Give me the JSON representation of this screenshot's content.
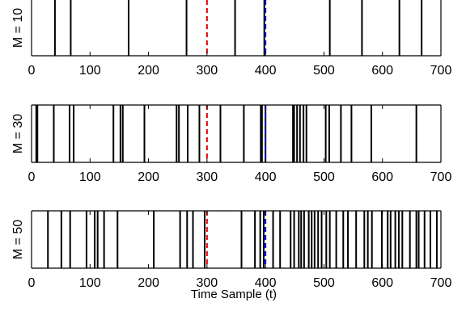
{
  "colors": {
    "event": "#000000",
    "marker_1": "#e00000",
    "marker_2": "#0000e0",
    "axes": "#000000"
  },
  "chart_data": {
    "type": "event-raster",
    "xlabel": "Time Sample (t)",
    "xlim": [
      0,
      700
    ],
    "x_ticks": [
      0,
      100,
      200,
      300,
      400,
      500,
      600,
      700
    ],
    "x_tick_labels": [
      "0",
      "100",
      "200",
      "300",
      "400",
      "500",
      "600",
      "700"
    ],
    "markers": [
      {
        "x": 300,
        "color": "red",
        "style": "dashed"
      },
      {
        "x": 400,
        "color": "blue",
        "style": "dashed"
      }
    ],
    "panels": [
      {
        "ylabel": "M = 10",
        "events": [
          40,
          67,
          166,
          265,
          348,
          398,
          510,
          565,
          629,
          667
        ]
      },
      {
        "ylabel": "M = 30",
        "events": [
          8,
          10,
          38,
          65,
          72,
          140,
          152,
          156,
          193,
          248,
          252,
          267,
          287,
          323,
          363,
          392,
          394,
          400,
          447,
          449,
          454,
          459,
          465,
          470,
          503,
          509,
          529,
          547,
          581,
          658
        ]
      },
      {
        "ylabel": "M = 50",
        "events": [
          28,
          51,
          66,
          94,
          108,
          113,
          124,
          147,
          209,
          254,
          266,
          276,
          296,
          359,
          382,
          391,
          397,
          413,
          425,
          443,
          449,
          457,
          461,
          466,
          474,
          479,
          484,
          490,
          496,
          504,
          510,
          521,
          533,
          541,
          555,
          569,
          575,
          582,
          599,
          609,
          614,
          622,
          628,
          634,
          647,
          658,
          662,
          672,
          682,
          693
        ]
      }
    ]
  }
}
